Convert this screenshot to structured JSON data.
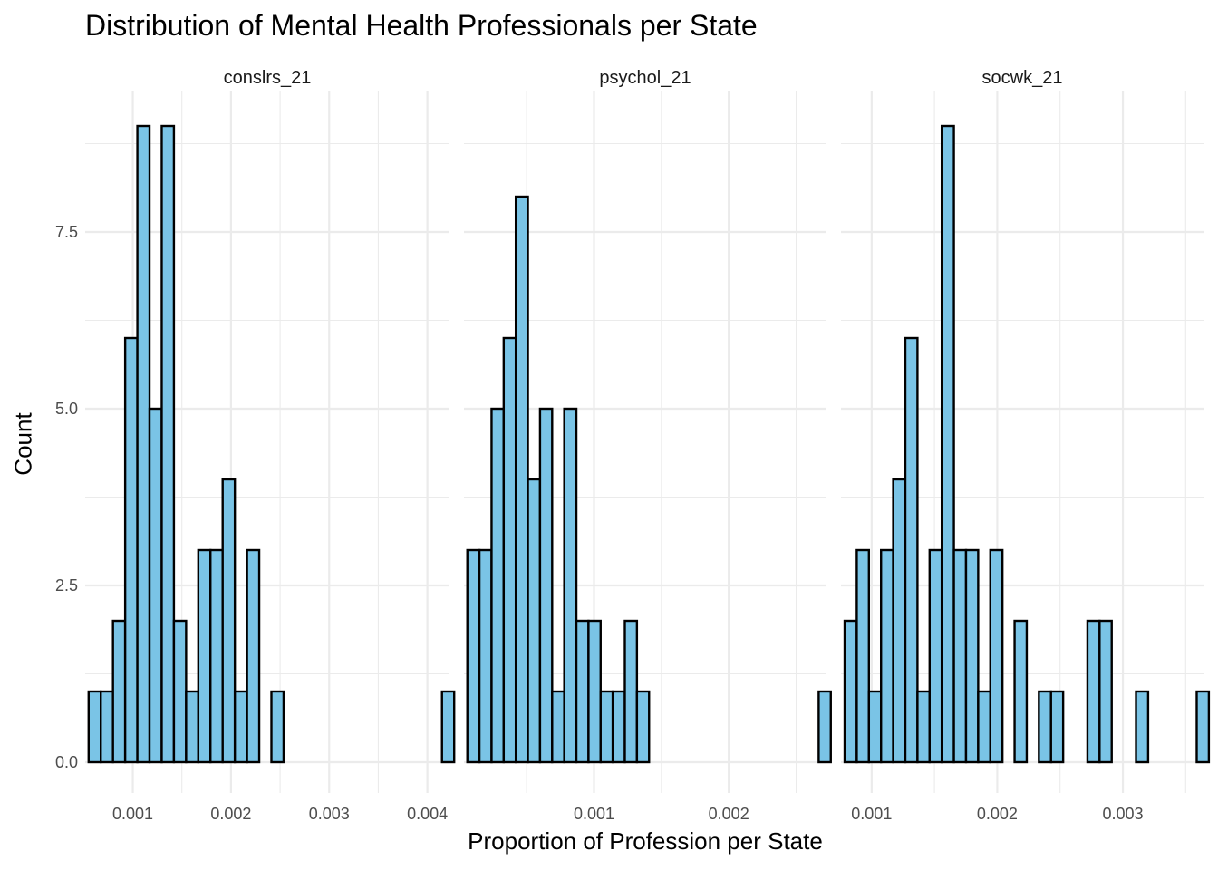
{
  "chart_data": {
    "type": "bar",
    "title": "Distribution of Mental Health Professionals per State",
    "xlabel": "Proportion of Profession per State",
    "ylabel": "Count",
    "ylim": [
      0,
      9.5
    ],
    "y_ticks": [
      0,
      2.5,
      5,
      7.5
    ],
    "y_tick_labels": [
      "0.0",
      "2.5",
      "5.0",
      "7.5"
    ],
    "grid": true,
    "colors": {
      "bar_fill": "#7ac4e6",
      "bar_stroke": "#000000",
      "grid": "#ebebeb",
      "background": "#ffffff"
    },
    "panels": [
      {
        "name": "conslrs_21",
        "xlim": [
          0.000515,
          0.004225
        ],
        "bin_start": 0.00055,
        "bin_width": 0.0001241,
        "counts": [
          1,
          1,
          2,
          6,
          9,
          5,
          9,
          2,
          1,
          3,
          3,
          4,
          1,
          3,
          0,
          1,
          0,
          0,
          0,
          0,
          0,
          0,
          0,
          0,
          0,
          0,
          0,
          0,
          0,
          1
        ],
        "x_ticks": [
          0.001,
          0.002,
          0.003,
          0.004
        ],
        "x_tick_labels": [
          "0.001",
          "0.002",
          "0.003",
          "0.004"
        ]
      },
      {
        "name": "psychol_21",
        "xlim": [
          3.5e-05,
          0.002725
        ],
        "bin_start": 6e-05,
        "bin_width": 8.99e-05,
        "counts": [
          3,
          3,
          5,
          6,
          8,
          4,
          5,
          1,
          5,
          2,
          2,
          1,
          1,
          2,
          1,
          0,
          0,
          0,
          0,
          0,
          0,
          0,
          0,
          0,
          0,
          0,
          0,
          0,
          0,
          1
        ],
        "x_ticks": [
          0.001,
          0.002
        ],
        "x_tick_labels": [
          "0.001",
          "0.002"
        ]
      },
      {
        "name": "socwk_21",
        "xlim": [
          0.000756,
          0.003642
        ],
        "bin_start": 0.000785,
        "bin_width": 9.665e-05,
        "counts": [
          2,
          3,
          1,
          3,
          4,
          6,
          1,
          3,
          9,
          3,
          3,
          1,
          3,
          0,
          2,
          0,
          1,
          1,
          0,
          0,
          2,
          2,
          0,
          0,
          1,
          0,
          0,
          0,
          0,
          1
        ],
        "x_ticks": [
          0.001,
          0.002,
          0.003
        ],
        "x_tick_labels": [
          "0.001",
          "0.002",
          "0.003"
        ]
      }
    ]
  }
}
